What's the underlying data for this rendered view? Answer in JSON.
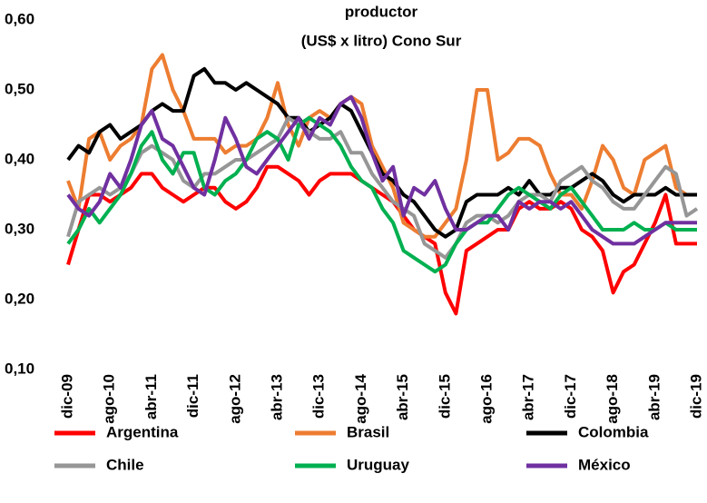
{
  "chart_data": {
    "type": "line",
    "title": "productor",
    "subtitle": "(US$ x litro) Cono Sur",
    "categories": [
      "dic-09",
      null,
      null,
      null,
      "ago-10",
      null,
      null,
      null,
      "abr-11",
      null,
      null,
      null,
      "dic-11",
      null,
      null,
      null,
      "ago-12",
      null,
      null,
      null,
      "abr-13",
      null,
      null,
      null,
      "dic-13",
      null,
      null,
      null,
      "ago-14",
      null,
      null,
      null,
      "abr-15",
      null,
      null,
      null,
      "dic-15",
      null,
      null,
      null,
      "ago-16",
      null,
      null,
      null,
      "abr-17",
      null,
      null,
      null,
      "dic-17",
      null,
      null,
      null,
      "ago-18",
      null,
      null,
      null,
      "abr-19",
      null,
      null,
      null,
      "dic-19"
    ],
    "ylim": [
      0.1,
      0.6
    ],
    "yticks": [
      {
        "value": 0.1,
        "label": "0,10"
      },
      {
        "value": 0.2,
        "label": "0,20"
      },
      {
        "value": 0.3,
        "label": "0,30"
      },
      {
        "value": 0.4,
        "label": "0,40"
      },
      {
        "value": 0.5,
        "label": "0,50"
      },
      {
        "value": 0.6,
        "label": "0,60"
      }
    ],
    "grid": false,
    "legend": "bottom",
    "series": [
      {
        "name": "Argentina",
        "color": "#ff0000",
        "values": [
          0.25,
          0.3,
          0.35,
          0.35,
          0.34,
          0.35,
          0.36,
          0.38,
          0.38,
          0.36,
          0.35,
          0.34,
          0.35,
          0.36,
          0.36,
          0.34,
          0.33,
          0.34,
          0.36,
          0.39,
          0.39,
          0.38,
          0.37,
          0.35,
          0.37,
          0.38,
          0.38,
          0.38,
          0.37,
          0.36,
          0.35,
          0.34,
          0.32,
          0.3,
          0.29,
          0.28,
          0.21,
          0.18,
          0.27,
          0.28,
          0.29,
          0.3,
          0.3,
          0.33,
          0.34,
          0.33,
          0.33,
          0.34,
          0.33,
          0.3,
          0.29,
          0.27,
          0.21,
          0.24,
          0.25,
          0.28,
          0.31,
          0.35,
          0.28,
          0.28,
          0.28
        ]
      },
      {
        "name": "Brasil",
        "color": "#ed7d31",
        "values": [
          0.37,
          0.33,
          0.43,
          0.44,
          0.4,
          0.42,
          0.43,
          0.45,
          0.53,
          0.55,
          0.5,
          0.47,
          0.43,
          0.43,
          0.43,
          0.41,
          0.42,
          0.42,
          0.43,
          0.46,
          0.51,
          0.45,
          0.42,
          0.46,
          0.47,
          0.46,
          0.48,
          0.49,
          0.48,
          0.42,
          0.39,
          0.36,
          0.31,
          0.3,
          0.29,
          0.29,
          0.31,
          0.33,
          0.4,
          0.5,
          0.5,
          0.4,
          0.41,
          0.43,
          0.43,
          0.42,
          0.38,
          0.35,
          0.35,
          0.33,
          0.37,
          0.42,
          0.4,
          0.36,
          0.35,
          0.4,
          0.41,
          0.42,
          0.36,
          0.35,
          0.35
        ]
      },
      {
        "name": "Colombia",
        "color": "#000000",
        "values": [
          0.4,
          0.42,
          0.41,
          0.44,
          0.45,
          0.43,
          0.44,
          0.45,
          0.47,
          0.48,
          0.47,
          0.47,
          0.52,
          0.53,
          0.51,
          0.51,
          0.5,
          0.51,
          0.5,
          0.49,
          0.48,
          0.46,
          0.46,
          0.44,
          0.45,
          0.46,
          0.48,
          0.47,
          0.44,
          0.41,
          0.38,
          0.37,
          0.35,
          0.34,
          0.32,
          0.3,
          0.29,
          0.3,
          0.34,
          0.35,
          0.35,
          0.35,
          0.36,
          0.35,
          0.37,
          0.35,
          0.35,
          0.36,
          0.36,
          0.37,
          0.38,
          0.37,
          0.35,
          0.34,
          0.35,
          0.35,
          0.35,
          0.36,
          0.35,
          0.35,
          0.35
        ]
      },
      {
        "name": "Chile",
        "color": "#969696",
        "values": [
          0.29,
          0.34,
          0.35,
          0.36,
          0.35,
          0.36,
          0.38,
          0.41,
          0.42,
          0.41,
          0.4,
          0.37,
          0.36,
          0.38,
          0.38,
          0.39,
          0.4,
          0.4,
          0.41,
          0.42,
          0.43,
          0.46,
          0.45,
          0.44,
          0.43,
          0.43,
          0.44,
          0.41,
          0.41,
          0.38,
          0.36,
          0.34,
          0.33,
          0.32,
          0.28,
          0.27,
          0.26,
          0.28,
          0.31,
          0.32,
          0.32,
          0.31,
          0.32,
          0.34,
          0.35,
          0.35,
          0.34,
          0.37,
          0.38,
          0.39,
          0.37,
          0.36,
          0.34,
          0.33,
          0.33,
          0.35,
          0.37,
          0.39,
          0.38,
          0.32,
          0.33
        ]
      },
      {
        "name": "Uruguay",
        "color": "#00b050",
        "values": [
          0.28,
          0.3,
          0.33,
          0.31,
          0.33,
          0.35,
          0.38,
          0.42,
          0.44,
          0.4,
          0.38,
          0.41,
          0.41,
          0.36,
          0.35,
          0.37,
          0.38,
          0.4,
          0.43,
          0.44,
          0.43,
          0.4,
          0.45,
          0.46,
          0.45,
          0.44,
          0.42,
          0.39,
          0.37,
          0.36,
          0.33,
          0.31,
          0.27,
          0.26,
          0.25,
          0.24,
          0.25,
          0.28,
          0.3,
          0.31,
          0.31,
          0.33,
          0.35,
          0.36,
          0.35,
          0.34,
          0.33,
          0.35,
          0.36,
          0.34,
          0.32,
          0.3,
          0.3,
          0.3,
          0.31,
          0.3,
          0.3,
          0.31,
          0.3,
          0.3,
          0.3
        ]
      },
      {
        "name": "México",
        "color": "#7030a0",
        "values": [
          0.35,
          0.33,
          0.32,
          0.34,
          0.38,
          0.36,
          0.4,
          0.45,
          0.47,
          0.43,
          0.42,
          0.39,
          0.36,
          0.35,
          0.4,
          0.46,
          0.43,
          0.39,
          0.38,
          0.4,
          0.42,
          0.44,
          0.46,
          0.43,
          0.46,
          0.45,
          0.48,
          0.49,
          0.46,
          0.41,
          0.37,
          0.39,
          0.32,
          0.36,
          0.35,
          0.37,
          0.33,
          0.3,
          0.3,
          0.31,
          0.32,
          0.32,
          0.3,
          0.34,
          0.33,
          0.34,
          0.34,
          0.33,
          0.34,
          0.32,
          0.3,
          0.29,
          0.28,
          0.28,
          0.28,
          0.29,
          0.3,
          0.31,
          0.31,
          0.31,
          0.31
        ]
      }
    ]
  }
}
